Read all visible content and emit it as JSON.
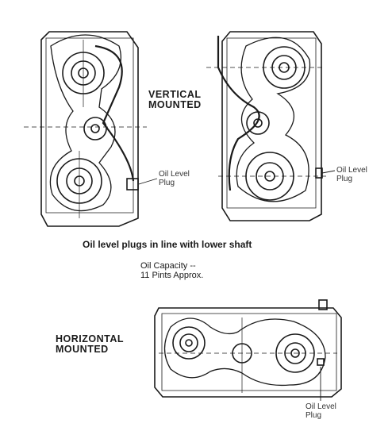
{
  "labels": {
    "vertical": "VERTICAL\nMOUNTED",
    "horizontal": "HORIZONTAL\nMOUNTED",
    "plug_left": "Oil Level\nPlug",
    "plug_right": "Oil Level\nPlug",
    "plug_bottom": "Oil Level\nPlug",
    "caption": "Oil level plugs in line with lower shaft",
    "capacity": "Oil Capacity --\n11 Pints Approx."
  },
  "colors": {
    "ink": "#1a1a1a",
    "paper": "#ffffff"
  }
}
